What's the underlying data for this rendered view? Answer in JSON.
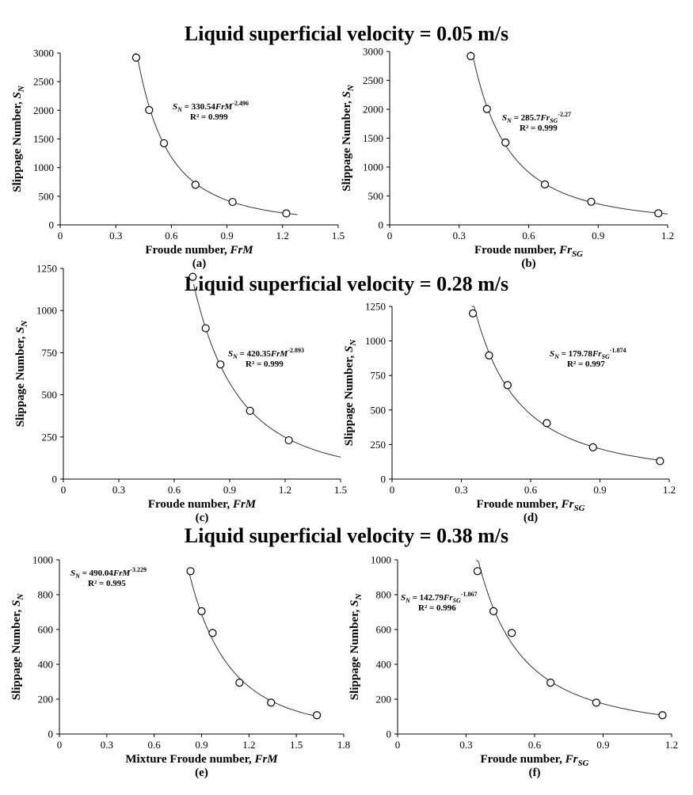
{
  "section_titles": [
    "Liquid superficial velocity  = 0.05 m/s",
    "Liquid superficial velocity  = 0.28 m/s",
    "Liquid superficial velocity  = 0.38 m/s"
  ],
  "chart_data": [
    {
      "type": "scatter",
      "panel_label": "(a)",
      "xlabel_text": "Froude number, ",
      "xlabel_var": "FrM",
      "xlabel_sub": "",
      "ylabel_text": "Slippage Number, ",
      "ylabel_var": "S",
      "ylabel_sub": "N",
      "xlim": [
        0,
        1.5
      ],
      "ylim": [
        0,
        3000
      ],
      "xticks": [
        0,
        0.3,
        0.6,
        0.9,
        1.2,
        1.5
      ],
      "xtick_labels": [
        "0",
        "0.3",
        "0.6",
        "0.9",
        "1.2",
        "1.5"
      ],
      "yticks": [
        0,
        500,
        1000,
        1500,
        2000,
        2500,
        3000
      ],
      "ytick_labels": [
        "0",
        "500",
        "1000",
        "1500",
        "2000",
        "2500",
        "3000"
      ],
      "series": [
        {
          "name": "data",
          "x": [
            0.41,
            0.48,
            0.56,
            0.73,
            0.93,
            1.22
          ],
          "y": [
            2920,
            2005,
            1425,
            700,
            400,
            200
          ]
        }
      ],
      "fit": {
        "coef": 330.54,
        "exp": -2.496,
        "x_range": [
          0.405,
          1.28
        ]
      },
      "equation": {
        "lhs_var": "S",
        "lhs_sub": "N",
        "eq": " = 330.54",
        "var": "FrM",
        "var_sub": "",
        "power": "-2.496",
        "r2": "R² = 0.999"
      }
    },
    {
      "type": "scatter",
      "panel_label": "(b)",
      "xlabel_text": "Froude number, ",
      "xlabel_var": "Fr",
      "xlabel_sub": "SG",
      "ylabel_text": "Slippage Number, ",
      "ylabel_var": "S",
      "ylabel_sub": "N",
      "xlim": [
        0,
        1.2
      ],
      "ylim": [
        0,
        3000
      ],
      "xticks": [
        0,
        0.3,
        0.6,
        0.9,
        1.2
      ],
      "xtick_labels": [
        "0",
        "0.3",
        "0.6",
        "0.9",
        "1.2"
      ],
      "yticks": [
        0,
        500,
        1000,
        1500,
        2000,
        2500,
        3000
      ],
      "ytick_labels": [
        "0",
        "500",
        "1000",
        "1500",
        "2000",
        "2500",
        "3000"
      ],
      "series": [
        {
          "name": "data",
          "x": [
            0.35,
            0.42,
            0.5,
            0.67,
            0.87,
            1.16
          ],
          "y": [
            2920,
            2005,
            1425,
            700,
            400,
            200
          ]
        }
      ],
      "fit": {
        "coef": 285.7,
        "exp": -2.27,
        "x_range": [
          0.35,
          1.2
        ]
      },
      "equation": {
        "lhs_var": "S",
        "lhs_sub": "N",
        "eq": " = 285.7",
        "var": "Fr",
        "var_sub": "SG",
        "power": "-2.27",
        "r2": "R² = 0.999"
      }
    },
    {
      "type": "scatter",
      "panel_label": "(c)",
      "xlabel_text": "Froude number, ",
      "xlabel_var": "FrM",
      "xlabel_sub": "",
      "ylabel_text": "Slippage Number, ",
      "ylabel_var": "S",
      "ylabel_sub": "N",
      "xlim": [
        0,
        1.5
      ],
      "ylim": [
        0,
        1250
      ],
      "xticks": [
        0,
        0.3,
        0.6,
        0.9,
        1.2,
        1.5
      ],
      "xtick_labels": [
        "0",
        "0.3",
        "0.6",
        "0.9",
        "1.2",
        "1.5"
      ],
      "yticks": [
        0,
        250,
        500,
        750,
        1000,
        1250
      ],
      "ytick_labels": [
        "0",
        "250",
        "500",
        "750",
        "1000",
        "1250"
      ],
      "series": [
        {
          "name": "data",
          "x": [
            0.7,
            0.77,
            0.85,
            1.01,
            1.22
          ],
          "y": [
            1200,
            895,
            680,
            405,
            230
          ]
        }
      ],
      "fit": {
        "coef": 420.35,
        "exp": -2.893,
        "x_range": [
          0.705,
          1.5
        ]
      },
      "equation": {
        "lhs_var": "S",
        "lhs_sub": "N",
        "eq": " = 420.35",
        "var": "FrM",
        "var_sub": "",
        "power": "-2.893",
        "r2": "R² = 0.999"
      }
    },
    {
      "type": "scatter",
      "panel_label": "(d)",
      "xlabel_text": "Froude number, ",
      "xlabel_var": "Fr",
      "xlabel_sub": "SG",
      "ylabel_text": "Slippage Number, ",
      "ylabel_var": "S",
      "ylabel_sub": "N",
      "xlim": [
        0,
        1.2
      ],
      "ylim": [
        0,
        1250
      ],
      "xticks": [
        0,
        0.3,
        0.6,
        0.9,
        1.2
      ],
      "xtick_labels": [
        "0",
        "0.3",
        "0.6",
        "0.9",
        "1.2"
      ],
      "yticks": [
        0,
        250,
        500,
        750,
        1000,
        1250
      ],
      "ytick_labels": [
        "0",
        "250",
        "500",
        "750",
        "1000",
        "1250"
      ],
      "series": [
        {
          "name": "data",
          "x": [
            0.35,
            0.42,
            0.5,
            0.67,
            0.87,
            1.16
          ],
          "y": [
            1200,
            895,
            680,
            405,
            230,
            130
          ]
        }
      ],
      "fit": {
        "coef": 179.78,
        "exp": -1.874,
        "x_range": [
          0.345,
          1.16
        ]
      },
      "equation": {
        "lhs_var": "S",
        "lhs_sub": "N",
        "eq": " = 179.78",
        "var": "Fr",
        "var_sub": "SG",
        "power": "-1.874",
        "r2": "R² = 0.997"
      }
    },
    {
      "type": "scatter",
      "panel_label": "(e)",
      "xlabel_text": "Mixture Froude number, ",
      "xlabel_var": "FrM",
      "xlabel_sub": "",
      "ylabel_text": "Slippage Number, ",
      "ylabel_var": "S",
      "ylabel_sub": "N",
      "xlim": [
        0,
        1.8
      ],
      "ylim": [
        0,
        1000
      ],
      "xticks": [
        0,
        0.3,
        0.6,
        0.9,
        1.2,
        1.5,
        1.8
      ],
      "xtick_labels": [
        "0",
        "0.3",
        "0.6",
        "0.9",
        "1.2",
        "1.5",
        "1.8"
      ],
      "yticks": [
        0,
        200,
        400,
        600,
        800,
        1000
      ],
      "ytick_labels": [
        "0",
        "200",
        "400",
        "600",
        "800",
        "1000"
      ],
      "series": [
        {
          "name": "data",
          "x": [
            0.83,
            0.9,
            0.97,
            1.14,
            1.34,
            1.63
          ],
          "y": [
            935,
            705,
            580,
            295,
            180,
            108
          ]
        }
      ],
      "fit": {
        "coef": 490.04,
        "exp": -3.229,
        "x_range": [
          0.82,
          1.63
        ]
      },
      "equation": {
        "lhs_var": "S",
        "lhs_sub": "N",
        "eq": " = 490.04",
        "var": "FrM",
        "var_sub": "",
        "power": "-3.229",
        "r2": "R² = 0.995"
      }
    },
    {
      "type": "scatter",
      "panel_label": "(f)",
      "xlabel_text": "Froude number, ",
      "xlabel_var": "Fr",
      "xlabel_sub": "SG",
      "ylabel_text": "Slippage Number, ",
      "ylabel_var": "S",
      "ylabel_sub": "N",
      "xlim": [
        0,
        1.2
      ],
      "ylim": [
        0,
        1000
      ],
      "xticks": [
        0,
        0.3,
        0.6,
        0.9,
        1.2
      ],
      "xtick_labels": [
        "0",
        "0.3",
        "0.6",
        "0.9",
        "1.2"
      ],
      "yticks": [
        0,
        200,
        400,
        600,
        800,
        1000
      ],
      "ytick_labels": [
        "0",
        "200",
        "400",
        "600",
        "800",
        "1000"
      ],
      "series": [
        {
          "name": "data",
          "x": [
            0.35,
            0.42,
            0.5,
            0.67,
            0.87,
            1.16
          ],
          "y": [
            935,
            705,
            580,
            295,
            180,
            108
          ]
        }
      ],
      "fit": {
        "coef": 142.79,
        "exp": -1.867,
        "x_range": [
          0.345,
          1.16
        ]
      },
      "equation": {
        "lhs_var": "S",
        "lhs_sub": "N",
        "eq": " = 142.79",
        "var": "Fr",
        "var_sub": "SG",
        "power": "-1.867",
        "r2": "R² = 0.996"
      }
    }
  ]
}
